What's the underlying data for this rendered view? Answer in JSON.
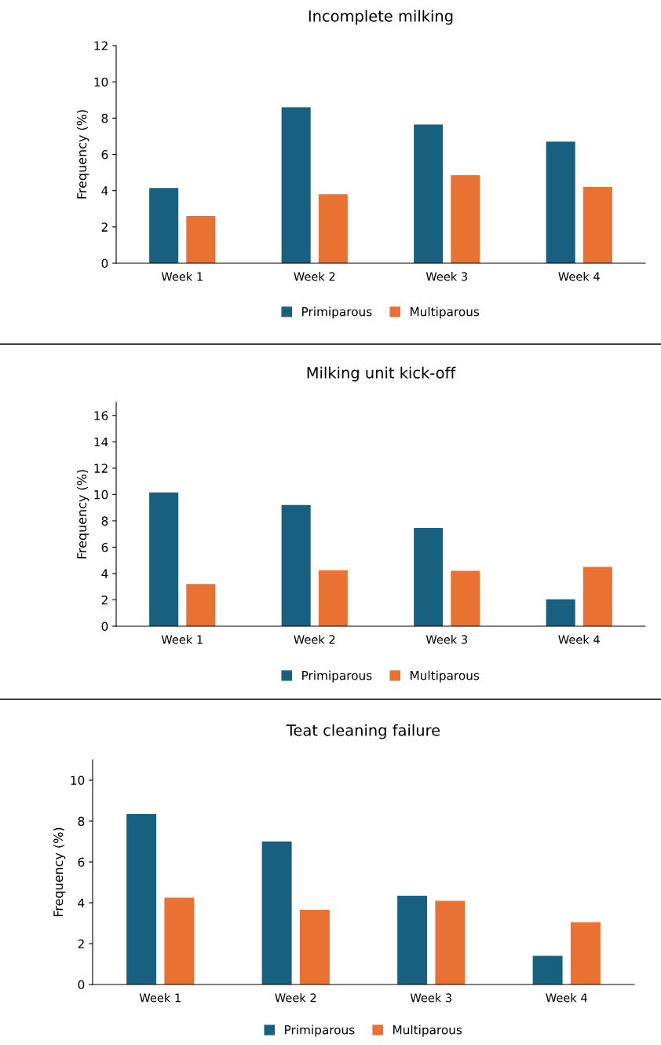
{
  "chart_data": [
    {
      "type": "bar",
      "title": "Incomplete milking",
      "ylabel": "Frequency (%)",
      "categories": [
        "Week 1",
        "Week 2",
        "Week 3",
        "Week 4"
      ],
      "series": [
        {
          "name": "Primiparous",
          "color": "#17607f",
          "values": [
            4.15,
            8.6,
            7.65,
            6.7
          ]
        },
        {
          "name": "Multiparous",
          "color": "#e97132",
          "values": [
            2.6,
            3.8,
            4.85,
            4.2
          ]
        }
      ],
      "ylim": [
        0,
        12
      ],
      "yticks": [
        0,
        2,
        4,
        6,
        8,
        10,
        12
      ],
      "grid": false,
      "legend": "bottom"
    },
    {
      "type": "bar",
      "title": "Milking unit kick-off",
      "ylabel": "Frequency (%)",
      "categories": [
        "Week 1",
        "Week 2",
        "Week 3",
        "Week 4"
      ],
      "series": [
        {
          "name": "Primiparous",
          "color": "#17607f",
          "values": [
            10.15,
            9.2,
            7.45,
            2.05
          ]
        },
        {
          "name": "Multiparous",
          "color": "#e97132",
          "values": [
            3.2,
            4.25,
            4.2,
            4.5
          ]
        }
      ],
      "ylim": [
        0,
        17
      ],
      "yticks": [
        0,
        2,
        4,
        6,
        8,
        10,
        12,
        14,
        16
      ],
      "grid": false,
      "legend": "bottom"
    },
    {
      "type": "bar",
      "title": "Teat cleaning failure",
      "ylabel": "Frequency (%)",
      "categories": [
        "Week 1",
        "Week 2",
        "Week 3",
        "Week 4"
      ],
      "series": [
        {
          "name": "Primiparous",
          "color": "#17607f",
          "values": [
            8.35,
            7.0,
            4.35,
            1.4
          ]
        },
        {
          "name": "Multiparous",
          "color": "#e97132",
          "values": [
            4.25,
            3.65,
            4.1,
            3.05
          ]
        }
      ],
      "ylim": [
        0,
        11
      ],
      "yticks": [
        0,
        2,
        4,
        6,
        8,
        10
      ],
      "grid": false,
      "legend": "bottom"
    }
  ]
}
